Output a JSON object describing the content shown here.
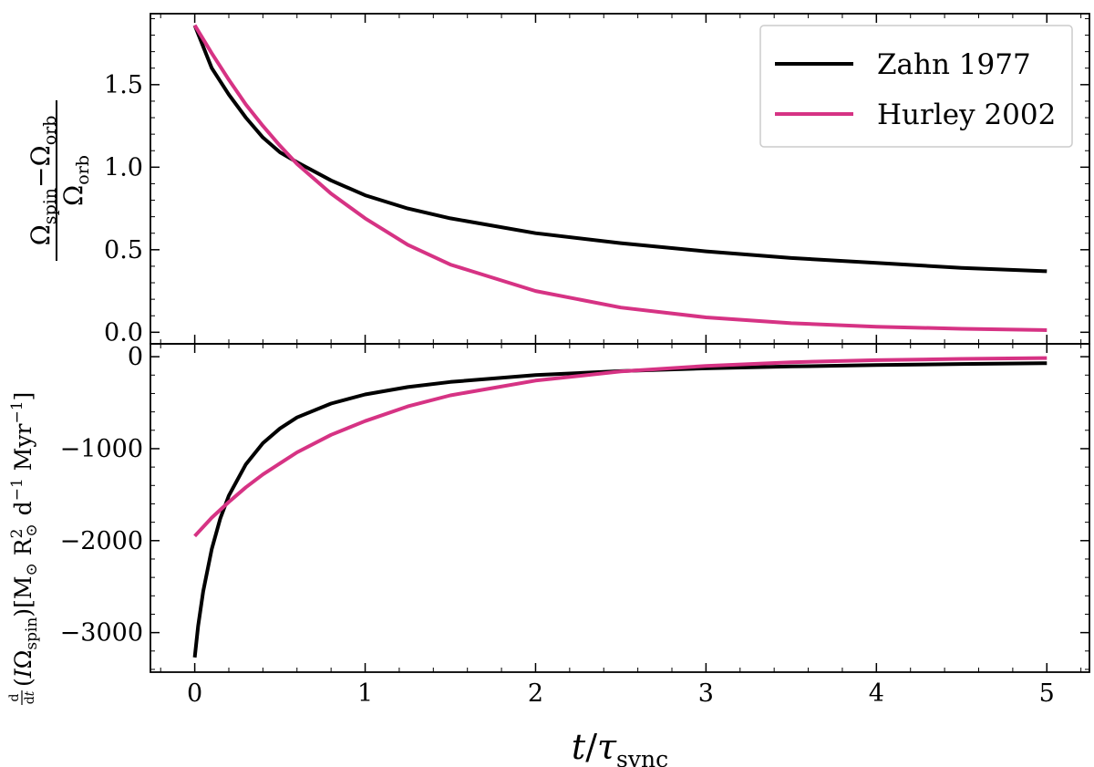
{
  "chart_data": [
    {
      "type": "line",
      "panel": "top",
      "ylabel_parts": {
        "numerator_left": "Ω",
        "numerator_left_sub": "spin",
        "minus": "−",
        "numerator_right": "Ω",
        "numerator_right_sub": "orb",
        "denominator": "Ω",
        "denominator_sub": "orb"
      },
      "xlim": [
        -0.26,
        5.25
      ],
      "ylim": [
        -0.07,
        1.93
      ],
      "xticks": [
        0,
        1,
        2,
        3,
        4,
        5
      ],
      "yticks": [
        0.0,
        0.5,
        1.0,
        1.5
      ],
      "ytick_labels": [
        "0.0",
        "0.5",
        "1.0",
        "1.5"
      ],
      "legend": {
        "placement": "top-right"
      },
      "series": [
        {
          "name": "Zahn 1977",
          "color": "#000000",
          "x": [
            0,
            0.1,
            0.2,
            0.3,
            0.4,
            0.5,
            0.6,
            0.8,
            1.0,
            1.25,
            1.5,
            2.0,
            2.5,
            3.0,
            3.5,
            4.0,
            4.5,
            5.0
          ],
          "y": [
            1.86,
            1.6,
            1.44,
            1.3,
            1.18,
            1.09,
            1.03,
            0.92,
            0.83,
            0.75,
            0.69,
            0.6,
            0.54,
            0.49,
            0.45,
            0.42,
            0.39,
            0.37
          ]
        },
        {
          "name": "Hurley 2002",
          "color": "#d63384",
          "x": [
            0,
            0.1,
            0.2,
            0.3,
            0.4,
            0.5,
            0.6,
            0.8,
            1.0,
            1.25,
            1.5,
            2.0,
            2.5,
            3.0,
            3.5,
            4.0,
            4.5,
            5.0
          ],
          "y": [
            1.86,
            1.69,
            1.53,
            1.38,
            1.25,
            1.13,
            1.02,
            0.84,
            0.69,
            0.53,
            0.41,
            0.25,
            0.15,
            0.09,
            0.055,
            0.034,
            0.021,
            0.013
          ]
        }
      ]
    },
    {
      "type": "line",
      "panel": "bottom",
      "ylabel_parts": {
        "frac_num": "d",
        "frac_den": "d",
        "frac_den_var": "t",
        "paren_open": "(",
        "var_I": "I",
        "omega": "Ω",
        "omega_sub": "spin",
        "paren_close": ")",
        "bracket_open": "[",
        "msun": "M",
        "sun": "⊙",
        "rsun": "R",
        "rsun_sup": "2",
        "days": "d",
        "days_sup": "−1",
        "myr": "Myr",
        "myr_sup": "−1",
        "bracket_close": "]"
      },
      "xlabel_parts": {
        "t": "t",
        "slash": "/",
        "tau": "τ",
        "tau_sub": "sync"
      },
      "xlim": [
        -0.26,
        5.25
      ],
      "ylim": [
        -3430,
        140
      ],
      "xticks": [
        0,
        1,
        2,
        3,
        4,
        5
      ],
      "xtick_labels": [
        "0",
        "1",
        "2",
        "3",
        "4",
        "5"
      ],
      "yticks": [
        0,
        -1000,
        -2000,
        -3000
      ],
      "ytick_labels": [
        "0",
        "−1000",
        "−2000",
        "−3000"
      ],
      "series": [
        {
          "name": "Zahn 1977",
          "color": "#000000",
          "x": [
            0,
            0.02,
            0.05,
            0.1,
            0.15,
            0.2,
            0.3,
            0.4,
            0.5,
            0.6,
            0.8,
            1.0,
            1.25,
            1.5,
            2.0,
            2.5,
            3.0,
            3.5,
            4.0,
            4.5,
            5.0
          ],
          "y": [
            -3270,
            -2930,
            -2550,
            -2090,
            -1760,
            -1510,
            -1170,
            -940,
            -780,
            -660,
            -510,
            -410,
            -330,
            -275,
            -200,
            -157,
            -127,
            -106,
            -91,
            -79,
            -70
          ]
        },
        {
          "name": "Hurley 2002",
          "color": "#d63384",
          "x": [
            0,
            0.1,
            0.2,
            0.3,
            0.4,
            0.5,
            0.6,
            0.8,
            1.0,
            1.25,
            1.5,
            2.0,
            2.5,
            3.0,
            3.5,
            4.0,
            4.5,
            5.0
          ],
          "y": [
            -1950,
            -1750,
            -1580,
            -1420,
            -1280,
            -1160,
            -1040,
            -850,
            -700,
            -540,
            -420,
            -260,
            -160,
            -100,
            -60,
            -38,
            -24,
            -15
          ]
        }
      ]
    }
  ]
}
